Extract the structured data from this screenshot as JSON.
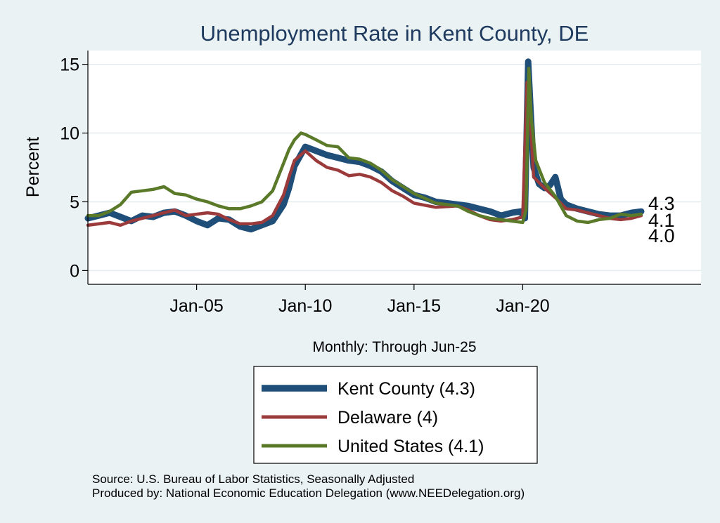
{
  "chart_data": {
    "type": "line",
    "title": "Unemployment Rate in Kent  County, DE",
    "ylabel": "Percent",
    "xlabel": "Monthly: Through Jun-25",
    "ylim": [
      -1,
      16
    ],
    "xlim": [
      2000.0,
      2028.2
    ],
    "yticks": [
      0,
      5,
      10,
      15
    ],
    "xticks": [
      {
        "value": 2005.0,
        "label": "Jan-05"
      },
      {
        "value": 2010.0,
        "label": "Jan-10"
      },
      {
        "value": 2015.0,
        "label": "Jan-15"
      },
      {
        "value": 2020.0,
        "label": "Jan-20"
      }
    ],
    "grid": true,
    "series": [
      {
        "name": "Kent  County",
        "legend_label": "Kent  County (4.3)",
        "color": "#1f4e79",
        "last_label": "4.3",
        "x": [
          2000.0,
          2000.5,
          2001.0,
          2001.5,
          2002.0,
          2002.5,
          2003.0,
          2003.5,
          2004.0,
          2004.5,
          2005.0,
          2005.5,
          2006.0,
          2006.5,
          2007.0,
          2007.5,
          2008.0,
          2008.5,
          2009.0,
          2009.25,
          2009.5,
          2010.0,
          2010.5,
          2011.0,
          2011.5,
          2012.0,
          2012.5,
          2013.0,
          2013.5,
          2014.0,
          2014.5,
          2015.0,
          2015.5,
          2016.0,
          2016.5,
          2017.0,
          2017.5,
          2018.0,
          2018.5,
          2019.0,
          2019.5,
          2019.9,
          2020.1,
          2020.25,
          2020.35,
          2020.5,
          2020.75,
          2021.0,
          2021.25,
          2021.5,
          2021.75,
          2022.0,
          2022.5,
          2023.0,
          2023.5,
          2024.0,
          2024.5,
          2025.0,
          2025.45
        ],
        "values": [
          3.8,
          4.0,
          4.2,
          3.9,
          3.6,
          4.0,
          3.9,
          4.2,
          4.3,
          4.0,
          3.6,
          3.3,
          3.8,
          3.7,
          3.2,
          3.0,
          3.3,
          3.6,
          4.8,
          6.0,
          7.6,
          9.0,
          8.7,
          8.4,
          8.2,
          8.0,
          7.9,
          7.6,
          7.2,
          6.5,
          6.0,
          5.5,
          5.3,
          5.0,
          4.9,
          4.8,
          4.7,
          4.5,
          4.3,
          4.0,
          4.2,
          4.3,
          3.8,
          15.2,
          12.0,
          7.5,
          6.3,
          6.0,
          6.2,
          6.8,
          5.2,
          4.8,
          4.5,
          4.3,
          4.1,
          4.0,
          4.0,
          4.2,
          4.3
        ]
      },
      {
        "name": "Delaware",
        "legend_label": "Delaware (4)",
        "color": "#9b3a3a",
        "last_label": "4.0",
        "x": [
          2000.0,
          2001.0,
          2001.5,
          2002.0,
          2003.0,
          2003.5,
          2004.0,
          2004.5,
          2005.0,
          2005.5,
          2006.0,
          2006.5,
          2007.0,
          2007.5,
          2008.0,
          2008.5,
          2009.0,
          2009.25,
          2009.5,
          2010.0,
          2010.5,
          2011.0,
          2011.5,
          2012.0,
          2012.5,
          2013.0,
          2013.5,
          2014.0,
          2014.5,
          2015.0,
          2016.0,
          2017.0,
          2017.5,
          2018.0,
          2018.5,
          2019.0,
          2019.5,
          2020.0,
          2020.2,
          2020.35,
          2020.5,
          2021.0,
          2021.5,
          2022.0,
          2022.5,
          2023.0,
          2024.0,
          2024.5,
          2025.0,
          2025.45
        ],
        "values": [
          3.3,
          3.5,
          3.3,
          3.6,
          4.0,
          4.2,
          4.4,
          4.0,
          4.1,
          4.2,
          4.1,
          3.7,
          3.4,
          3.4,
          3.5,
          4.0,
          5.5,
          6.8,
          8.0,
          8.7,
          8.0,
          7.5,
          7.3,
          6.9,
          7.0,
          6.8,
          6.4,
          5.8,
          5.4,
          4.9,
          4.6,
          4.7,
          4.4,
          4.0,
          3.7,
          3.6,
          3.7,
          3.9,
          13.7,
          11.0,
          6.8,
          6.0,
          5.3,
          4.5,
          4.4,
          4.2,
          3.8,
          3.7,
          3.8,
          4.0
        ]
      },
      {
        "name": "United States",
        "legend_label": "United States (4.1)",
        "color": "#5a7a2a",
        "last_label": "4.1",
        "x": [
          2000.0,
          2000.5,
          2001.0,
          2001.5,
          2002.0,
          2002.5,
          2003.0,
          2003.5,
          2004.0,
          2004.5,
          2005.0,
          2005.5,
          2006.0,
          2006.5,
          2007.0,
          2007.5,
          2008.0,
          2008.5,
          2009.0,
          2009.25,
          2009.5,
          2009.8,
          2010.0,
          2010.5,
          2011.0,
          2011.5,
          2012.0,
          2012.5,
          2013.0,
          2013.5,
          2014.0,
          2014.5,
          2015.0,
          2016.0,
          2017.0,
          2017.5,
          2018.0,
          2018.5,
          2019.0,
          2019.5,
          2020.0,
          2020.15,
          2020.28,
          2020.4,
          2020.6,
          2021.0,
          2021.5,
          2022.0,
          2022.5,
          2023.0,
          2023.5,
          2024.0,
          2024.5,
          2025.0,
          2025.45
        ],
        "values": [
          4.0,
          4.0,
          4.3,
          4.8,
          5.7,
          5.8,
          5.9,
          6.1,
          5.6,
          5.5,
          5.2,
          5.0,
          4.7,
          4.5,
          4.5,
          4.7,
          5.0,
          5.8,
          7.8,
          8.8,
          9.5,
          10.0,
          9.9,
          9.5,
          9.1,
          9.0,
          8.2,
          8.1,
          7.8,
          7.3,
          6.6,
          6.1,
          5.6,
          4.9,
          4.7,
          4.3,
          4.0,
          3.8,
          3.7,
          3.6,
          3.5,
          4.4,
          14.7,
          11.0,
          8.0,
          6.4,
          5.4,
          4.0,
          3.6,
          3.5,
          3.7,
          3.8,
          4.1,
          4.0,
          4.1
        ]
      }
    ]
  },
  "source": {
    "line1": "Source: U.S. Bureau of Labor Statistics, Seasonally Adjusted",
    "line2": "Produced by: National Economic Education Delegation (www.NEEDelegation.org)"
  }
}
